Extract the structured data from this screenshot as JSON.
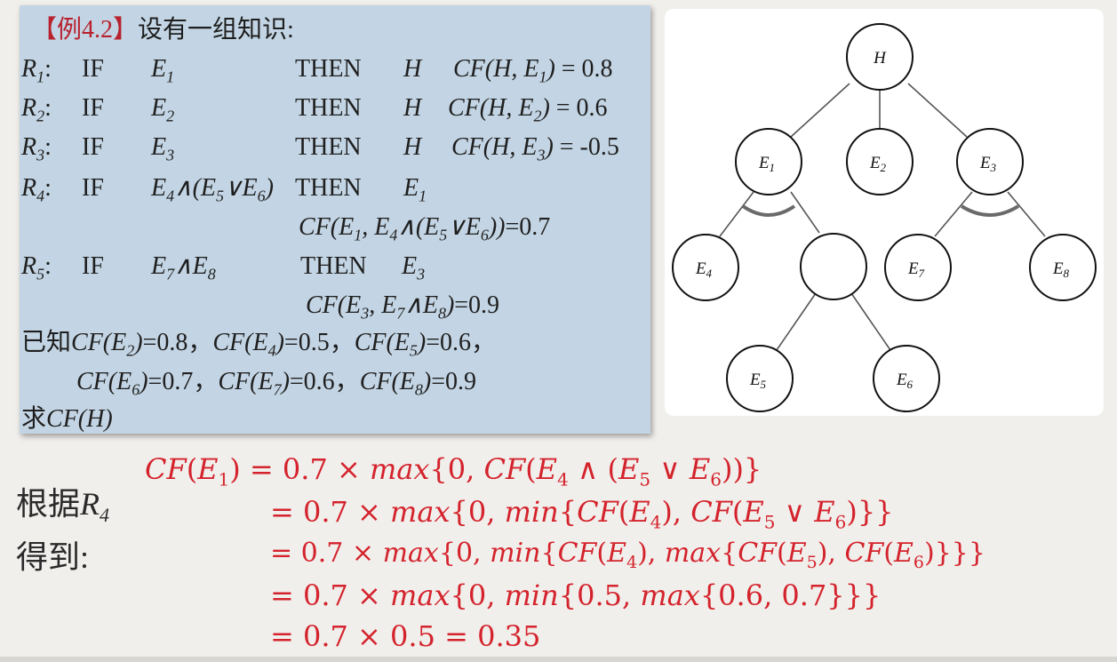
{
  "panel": {
    "title_bracket": "【例4.2】",
    "title_text": "设有一组知识:",
    "rules": [
      {
        "id": "R1",
        "if": "IF",
        "premise": "E1",
        "then": "THEN",
        "concl": "H",
        "cf": "CF(H, E1) = 0.8"
      },
      {
        "id": "R2",
        "if": "IF",
        "premise": "E2",
        "then": "THEN",
        "concl": "H",
        "cf": "CF(H, E2) = 0.6"
      },
      {
        "id": "R3",
        "if": "IF",
        "premise": "E3",
        "then": "THEN",
        "concl": "H",
        "cf": "CF(H, E3) = -0.5"
      },
      {
        "id": "R4",
        "if": "IF",
        "premise": "E4∧(E5∨E6)",
        "then": "THEN",
        "concl": "E1",
        "cf": "CF(E1, E4∧(E5∨E6))=0.7"
      },
      {
        "id": "R5",
        "if": "IF",
        "premise": "E7∧E8",
        "then": "THEN",
        "concl": "E3",
        "cf": "CF(E3, E7∧E8)=0.9"
      }
    ],
    "known_line1": "已知CF(E2)=0.8，CF(E4)=0.5，CF(E5)=0.6，",
    "known_line2": "CF(E6)=0.7，CF(E7)=0.6，CF(E8)=0.9",
    "ask": "求CF(H)"
  },
  "tree": {
    "nodes": [
      "H",
      "E1",
      "E2",
      "E3",
      "E4",
      "E7",
      "E8",
      "E5",
      "E6"
    ]
  },
  "derivation": {
    "caption1": "根据R4",
    "caption2": "得到:",
    "lines": [
      "CF(E1) = 0.7 × max{0, CF(E4 ∧ (E5 ∨ E6))}",
      "= 0.7 × max{0, min{CF(E4), CF(E5 ∨ E6)}}",
      "= 0.7 × max{0, min{CF(E4), max{CF(E5), CF(E6)}}}",
      "= 0.7 × max{0, min{0.5, max{0.6, 0.7}}}",
      "= 0.7 × 0.5 = 0.35"
    ]
  }
}
